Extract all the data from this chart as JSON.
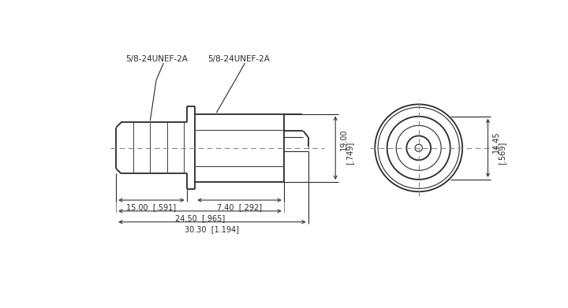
{
  "bg_color": "#ffffff",
  "line_color": "#2a2a2a",
  "thin_color": "#2a2a2a",
  "dash_color": "#888888",
  "labels": {
    "thread_left": "5/8-24UNEF-2A",
    "thread_right": "5/8-24UNEF-2A",
    "dim_15": "15.00  [.591]",
    "dim_740": "7.40  [.292]",
    "dim_2450": "24.50  [.965]",
    "dim_3030": "30.30  [1.194]",
    "dim_19_a": "19.00",
    "dim_19_b": "[.749]",
    "dim_1445_a": "14.45",
    "dim_1445_b": "[.569]"
  },
  "lw_main": 1.3,
  "lw_thin": 0.8,
  "lw_dim": 0.75,
  "fontsize": 7.5,
  "fontsize_small": 7.0
}
